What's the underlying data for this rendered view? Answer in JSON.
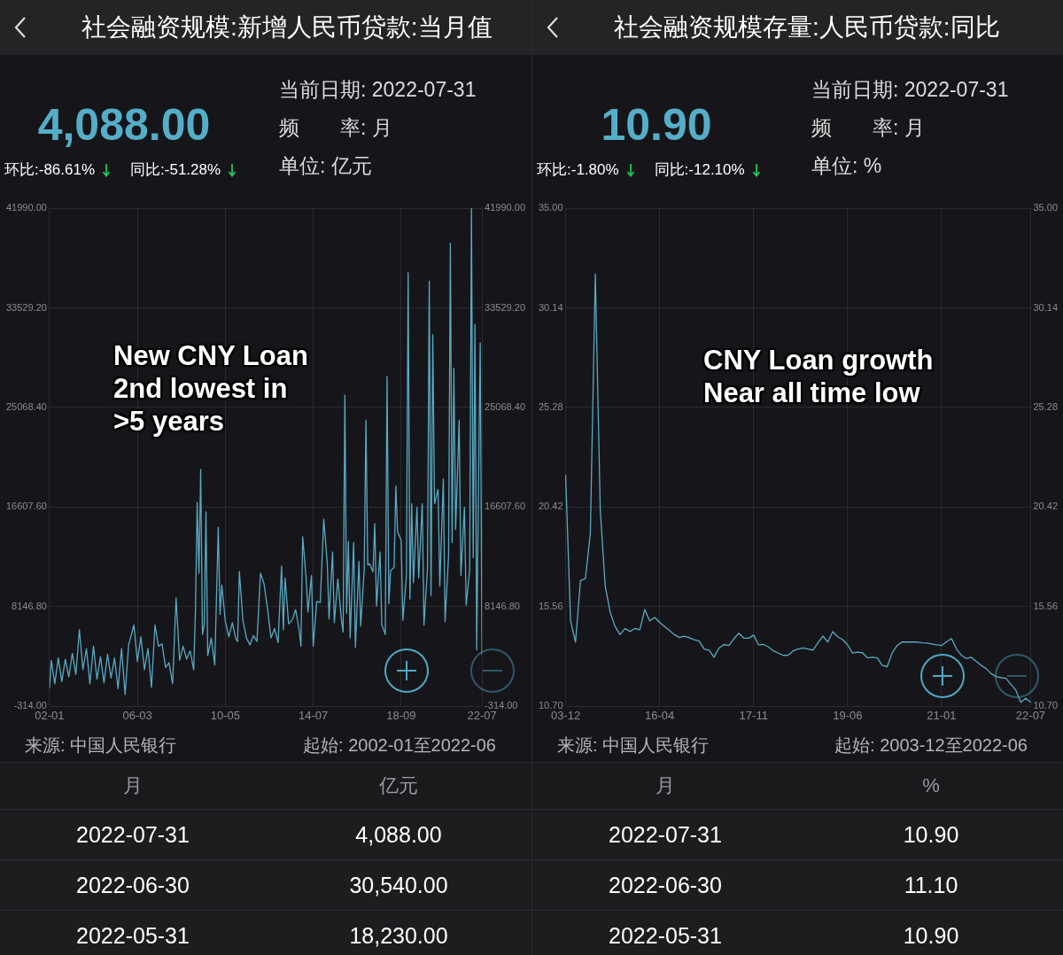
{
  "chart_data": [
    {
      "type": "line",
      "title": "社会融资规模:新增人民币贷款:当月值",
      "x": [
        "2002-01",
        "2002-02",
        "2002-04",
        "2002-06",
        "2002-08",
        "2002-10",
        "2002-12",
        "2003-02",
        "2003-04",
        "2003-06",
        "2003-08",
        "2003-10",
        "2003-12",
        "2004-02",
        "2004-04",
        "2004-06",
        "2004-08",
        "2004-10",
        "2004-12",
        "2005-02",
        "2005-04",
        "2005-06",
        "2005-08",
        "2005-10",
        "2006-01",
        "2006-03",
        "2006-05",
        "2006-07",
        "2006-09",
        "2006-11",
        "2007-01",
        "2007-03",
        "2007-05",
        "2007-07",
        "2007-09",
        "2007-11",
        "2008-01",
        "2008-03",
        "2008-05",
        "2008-07",
        "2008-09",
        "2008-11",
        "2008-12",
        "2009-01",
        "2009-02",
        "2009-03",
        "2009-04",
        "2009-05",
        "2009-06",
        "2009-07",
        "2009-09",
        "2009-11",
        "2010-01",
        "2010-02",
        "2010-03",
        "2010-05",
        "2010-07",
        "2010-09",
        "2010-11",
        "2010-12",
        "2011-01",
        "2011-03",
        "2011-05",
        "2011-07",
        "2011-09",
        "2011-11",
        "2012-01",
        "2012-03",
        "2012-05",
        "2012-07",
        "2012-09",
        "2012-11",
        "2013-01",
        "2013-02",
        "2013-03",
        "2013-05",
        "2013-07",
        "2013-09",
        "2013-11",
        "2013-12",
        "2014-01",
        "2014-03",
        "2014-04",
        "2014-06",
        "2014-07",
        "2014-09",
        "2014-11",
        "2015-01",
        "2015-03",
        "2015-04",
        "2015-06",
        "2015-07",
        "2015-09",
        "2015-11",
        "2015-12",
        "2016-01",
        "2016-02",
        "2016-03",
        "2016-04",
        "2016-06",
        "2016-07",
        "2016-09",
        "2016-10",
        "2016-12",
        "2017-01",
        "2017-02",
        "2017-03",
        "2017-05",
        "2017-06",
        "2017-07",
        "2017-09",
        "2017-10",
        "2017-12",
        "2018-01",
        "2018-02",
        "2018-03",
        "2018-05",
        "2018-06",
        "2018-07",
        "2018-09",
        "2018-10",
        "2018-12",
        "2019-01",
        "2019-02",
        "2019-03",
        "2019-04",
        "2019-06",
        "2019-07",
        "2019-09",
        "2019-10",
        "2019-12",
        "2020-01",
        "2020-02",
        "2020-03",
        "2020-04",
        "2020-06",
        "2020-07",
        "2020-09",
        "2020-10",
        "2020-12",
        "2021-01",
        "2021-02",
        "2021-03",
        "2021-04",
        "2021-06",
        "2021-07",
        "2021-09",
        "2021-10",
        "2021-12",
        "2022-01",
        "2022-02",
        "2022-03",
        "2022-04",
        "2022-05",
        "2022-06",
        "2022-07"
      ],
      "values": [
        1200,
        3600,
        1600,
        3800,
        1800,
        3700,
        2200,
        4200,
        2400,
        6200,
        2800,
        4600,
        1600,
        4800,
        2000,
        3900,
        1700,
        4100,
        2100,
        3800,
        1200,
        4600,
        700,
        4900,
        6600,
        3500,
        5600,
        2800,
        4600,
        1300,
        6600,
        4800,
        5000,
        3000,
        3400,
        1600,
        8900,
        3600,
        4800,
        3700,
        4400,
        2800,
        7700,
        17000,
        11000,
        19800,
        5800,
        6600,
        16200,
        4000,
        5500,
        3200,
        14900,
        7500,
        10000,
        6900,
        5600,
        6800,
        5400,
        5200,
        11150,
        7000,
        5500,
        4900,
        5700,
        5200,
        11000,
        10100,
        8000,
        5500,
        6300,
        5100,
        11600,
        6200,
        10600,
        6700,
        7000,
        7900,
        6200,
        4800,
        14100,
        10500,
        7700,
        10800,
        4800,
        8600,
        8500,
        15600,
        11800,
        7100,
        12800,
        6800,
        10500,
        7100,
        6000,
        26100,
        7600,
        13700,
        5500,
        13600,
        4700,
        12000,
        6500,
        11300,
        24000,
        11700,
        11800,
        11100,
        15200,
        8200,
        12800,
        6600,
        5800,
        27700,
        8400,
        11200,
        11500,
        18400,
        14500,
        13800,
        7000,
        10800,
        36500,
        8800,
        16900,
        10200,
        16600,
        10600,
        16900,
        6600,
        11400,
        35800,
        9100,
        31250,
        16900,
        18100,
        9900,
        19000,
        6900,
        12500,
        39000,
        13600,
        28400,
        14700,
        24000,
        10800,
        16600,
        8300,
        11300,
        41990,
        12300,
        32100,
        4500,
        18230,
        30540,
        4088
      ],
      "color": "#5aa9c2",
      "xlim": [
        "2002-01",
        "2022-07"
      ],
      "xticks": [
        {
          "value": "2002-01",
          "label": "02-01"
        },
        {
          "value": "2006-03",
          "label": "06-03"
        },
        {
          "value": "2010-05",
          "label": "10-05"
        },
        {
          "value": "2014-07",
          "label": "14-07"
        },
        {
          "value": "2018-09",
          "label": "18-09"
        },
        {
          "value": "2022-07",
          "label": "22-07"
        }
      ],
      "ylim": [
        -314,
        41990
      ],
      "yticks": [
        {
          "value": -314,
          "label": "-314.00"
        },
        {
          "value": 8146.8,
          "label": "8146.80"
        },
        {
          "value": 16607.6,
          "label": "16607.60"
        },
        {
          "value": 25068.4,
          "label": "25068.40"
        },
        {
          "value": 33529.2,
          "label": "33529.20"
        },
        {
          "value": 41990,
          "label": "41990.00"
        }
      ],
      "y2lim": [
        -314,
        41990
      ],
      "y2ticks": [
        {
          "value": -314,
          "label": "-314.00"
        },
        {
          "value": 8146.8,
          "label": "8146.80"
        },
        {
          "value": 16607.6,
          "label": "16607.60"
        },
        {
          "value": 25068.4,
          "label": "25068.40"
        },
        {
          "value": 33529.2,
          "label": "33529.20"
        },
        {
          "value": 41990,
          "label": "41990.00"
        }
      ],
      "grid": true,
      "legend": false,
      "annotations": [
        "4,088.00",
        "环比:-86.61%",
        "同比:-51.28%",
        "当前日期: 2022-07-31",
        "频　　率: 月",
        "单位: 亿元",
        "New CNY Loan\n2nd lowest in\n>5 years",
        "来源: 中国人民银行",
        "起始: 2002-01至2022-06",
        "月",
        "亿元",
        "2022-07-31",
        "4,088.00",
        "2022-06-30",
        "30,540.00",
        "2022-05-31",
        "18,230.00"
      ]
    },
    {
      "type": "line",
      "title": "社会融资规模存量:人民币贷款:同比",
      "categories": [
        "03-12",
        null,
        null,
        null,
        null,
        null,
        null,
        null,
        null,
        null,
        null,
        null,
        null,
        null,
        null,
        null,
        null,
        null,
        null,
        "16-04",
        null,
        null,
        null,
        null,
        null,
        null,
        null,
        null,
        null,
        null,
        null,
        null,
        null,
        null,
        null,
        null,
        null,
        null,
        "17-11",
        null,
        null,
        null,
        null,
        null,
        null,
        null,
        null,
        null,
        null,
        null,
        null,
        null,
        null,
        null,
        null,
        null,
        null,
        "19-06",
        null,
        null,
        null,
        null,
        null,
        null,
        null,
        null,
        null,
        null,
        null,
        null,
        null,
        null,
        null,
        null,
        null,
        null,
        "21-01",
        null,
        null,
        null,
        null,
        null,
        null,
        null,
        null,
        null,
        null,
        null,
        null,
        null,
        null,
        null,
        null,
        null,
        "22-07"
      ],
      "values": [
        22.0,
        14.87,
        13.84,
        16.84,
        16.93,
        19.15,
        31.8,
        20.27,
        16.58,
        15.3,
        14.6,
        14.2,
        14.5,
        14.35,
        14.5,
        14.44,
        15.43,
        14.87,
        15.04,
        14.8,
        14.6,
        14.4,
        14.2,
        14.06,
        14.13,
        14.05,
        13.95,
        13.89,
        13.5,
        13.44,
        13.1,
        13.55,
        13.72,
        13.67,
        14.0,
        14.27,
        14.03,
        14.03,
        14.18,
        13.7,
        13.72,
        13.6,
        13.41,
        13.3,
        13.19,
        13.2,
        13.41,
        13.5,
        13.55,
        13.5,
        13.44,
        13.8,
        14.13,
        13.84,
        14.35,
        14.1,
        13.96,
        13.7,
        13.3,
        13.35,
        13.32,
        13.07,
        13.1,
        13.07,
        12.7,
        12.64,
        13.3,
        13.67,
        13.84,
        13.84,
        13.84,
        13.84,
        13.8,
        13.79,
        13.75,
        13.7,
        13.67,
        13.85,
        14.01,
        13.5,
        13.2,
        13.03,
        13.1,
        12.9,
        12.7,
        12.55,
        12.3,
        12.16,
        12.1,
        12.07,
        11.78,
        11.5,
        10.9,
        11.1,
        10.9
      ],
      "color": "#5aa9c2",
      "ylim": [
        10.7,
        35
      ],
      "yticks": [
        {
          "value": 10.7,
          "label": "10.70"
        },
        15.56,
        20.42,
        25.28,
        30.14,
        {
          "value": 35,
          "label": "35.00"
        }
      ],
      "y2lim": [
        10.7,
        35
      ],
      "y2ticks": [
        {
          "value": 10.7,
          "label": "10.70"
        },
        15.56,
        20.42,
        25.28,
        30.14,
        {
          "value": 35,
          "label": "35.00"
        }
      ],
      "grid": true,
      "legend": false,
      "annotations": [
        "10.90",
        "环比:-1.80%",
        "同比:-12.10%",
        "当前日期: 2022-07-31",
        "频　　率: 月",
        "单位: %",
        "CNY Loan growth\nNear all time low",
        "来源: 中国人民银行",
        "起始: 2003-12至2022-06",
        "月",
        "%",
        "2022-07-31",
        "10.90",
        "2022-06-30",
        "11.10",
        "2022-05-31",
        "10.90"
      ]
    }
  ]
}
